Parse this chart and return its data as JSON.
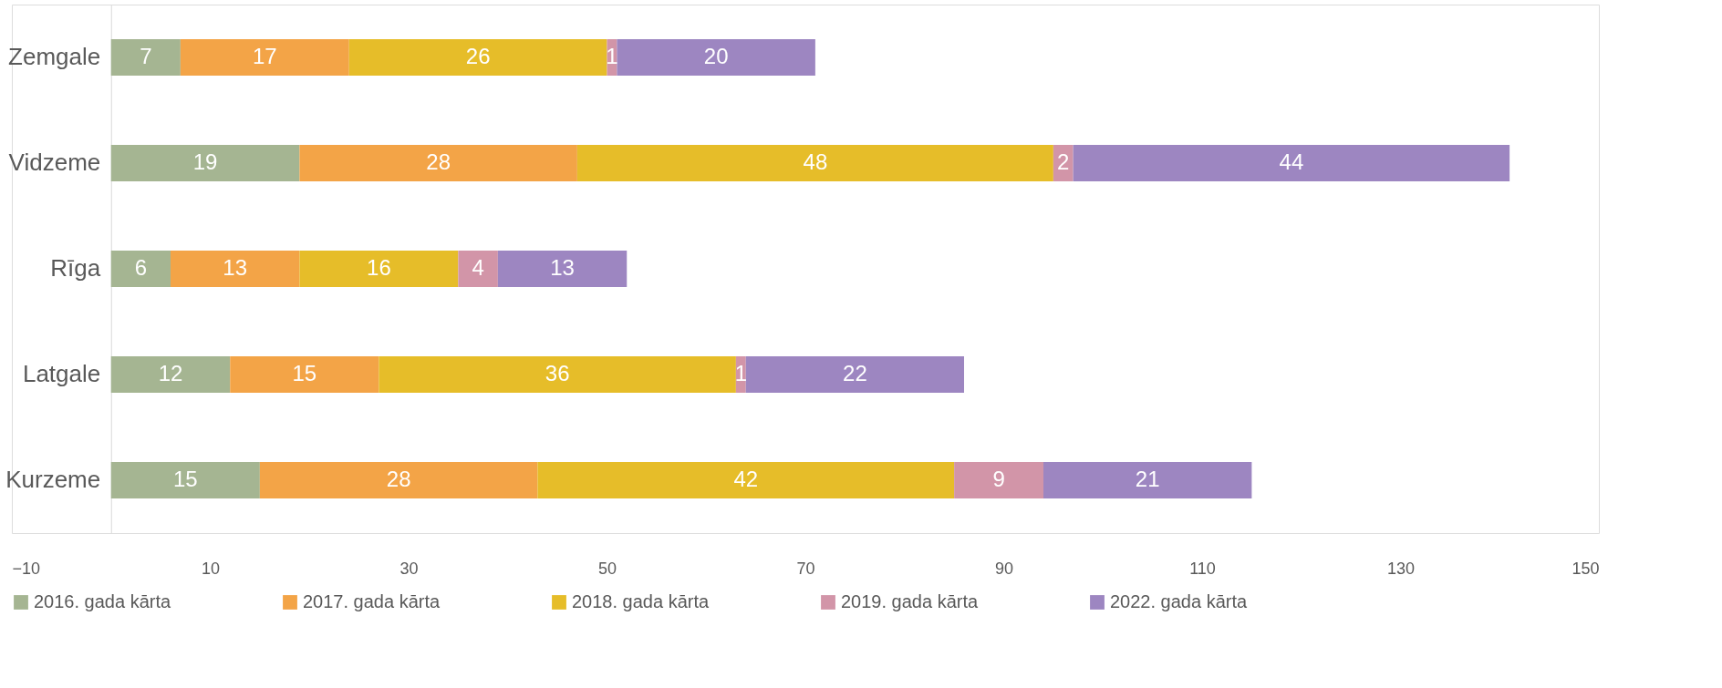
{
  "chart_data": {
    "type": "bar",
    "orientation": "horizontal",
    "stacked": true,
    "data_labels": true,
    "legend": "bottom",
    "grid": false,
    "categories": [
      "Zemgale",
      "Vidzeme",
      "Rīga",
      "Latgale",
      "Kurzeme"
    ],
    "xlim": [
      -10,
      150
    ],
    "xticks": [
      -10,
      10,
      30,
      50,
      70,
      90,
      110,
      130,
      150
    ],
    "series": [
      {
        "name": "2016. gada kārta",
        "color": "#a5b592",
        "values": [
          7,
          19,
          6,
          12,
          15
        ]
      },
      {
        "name": "2017. gada kārta",
        "color": "#f3a447",
        "values": [
          17,
          28,
          13,
          15,
          28
        ]
      },
      {
        "name": "2018. gada kārta",
        "color": "#e6bd29",
        "values": [
          26,
          48,
          16,
          36,
          42
        ]
      },
      {
        "name": "2019. gada kārta",
        "color": "#d295a8",
        "values": [
          1,
          2,
          4,
          1,
          9
        ]
      },
      {
        "name": "2022. gada kārta",
        "color": "#9d86c1",
        "values": [
          20,
          44,
          13,
          22,
          21
        ]
      }
    ]
  }
}
